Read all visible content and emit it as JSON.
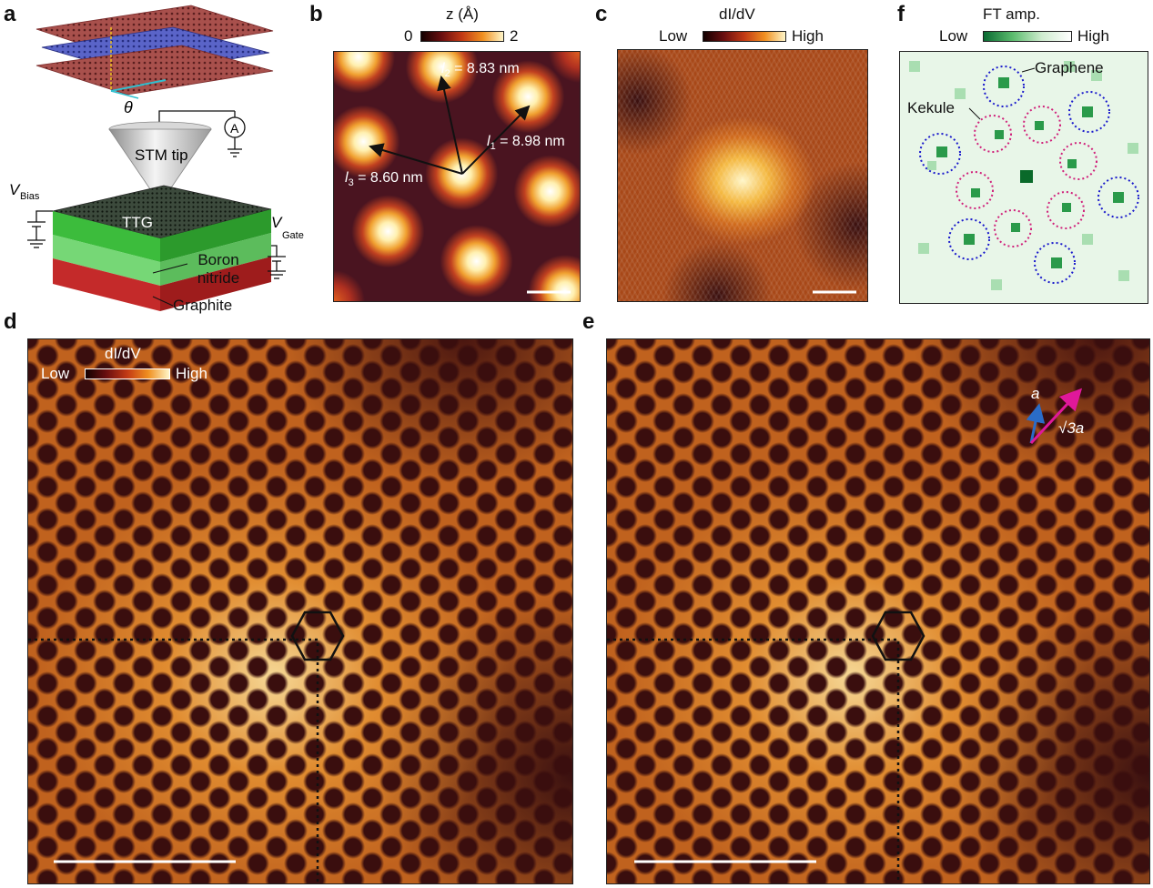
{
  "panels": {
    "a": {
      "label": "a",
      "theta": "θ",
      "ammeter": "A",
      "stm_tip": "STM tip",
      "v_bias": "V",
      "v_bias_sub": "Bias",
      "v_gate": "V",
      "v_gate_sub": "Gate",
      "ttg": "TTG",
      "boron_nitride": "Boron nitride",
      "graphite": "Graphite"
    },
    "b": {
      "label": "b",
      "colorbar_title": "z (Å)",
      "colorbar_min": "0",
      "colorbar_max": "2",
      "l1_var": "l",
      "l1_sub": "1",
      "l1_value": " = 8.98 nm",
      "l2_var": "l",
      "l2_sub": "2",
      "l2_value": " = 8.83 nm",
      "l3_var": "l",
      "l3_sub": "3",
      "l3_value": " = 8.60 nm"
    },
    "c": {
      "label": "c",
      "colorbar_title": "dI/dV",
      "colorbar_low": "Low",
      "colorbar_high": "High"
    },
    "f": {
      "label": "f",
      "colorbar_title": "FT amp.",
      "colorbar_low": "Low",
      "colorbar_high": "High",
      "graphene": "Graphene",
      "kekule": "Kekule"
    },
    "d": {
      "label": "d",
      "colorbar_title": "dI/dV",
      "colorbar_low": "Low",
      "colorbar_high": "High"
    },
    "e": {
      "label": "e",
      "vector_a": "a",
      "vector_sqrt3a": "√3a"
    }
  },
  "colors": {
    "afm_dark": "#3a0d12",
    "afm_bright": "#fff2c0",
    "ft_green": "#1e8c46",
    "graphene_circle": "#1a1acc",
    "kekule_circle": "#d0207a",
    "vector_magenta": "#e0189a",
    "vector_blue": "#2a6cc8"
  }
}
